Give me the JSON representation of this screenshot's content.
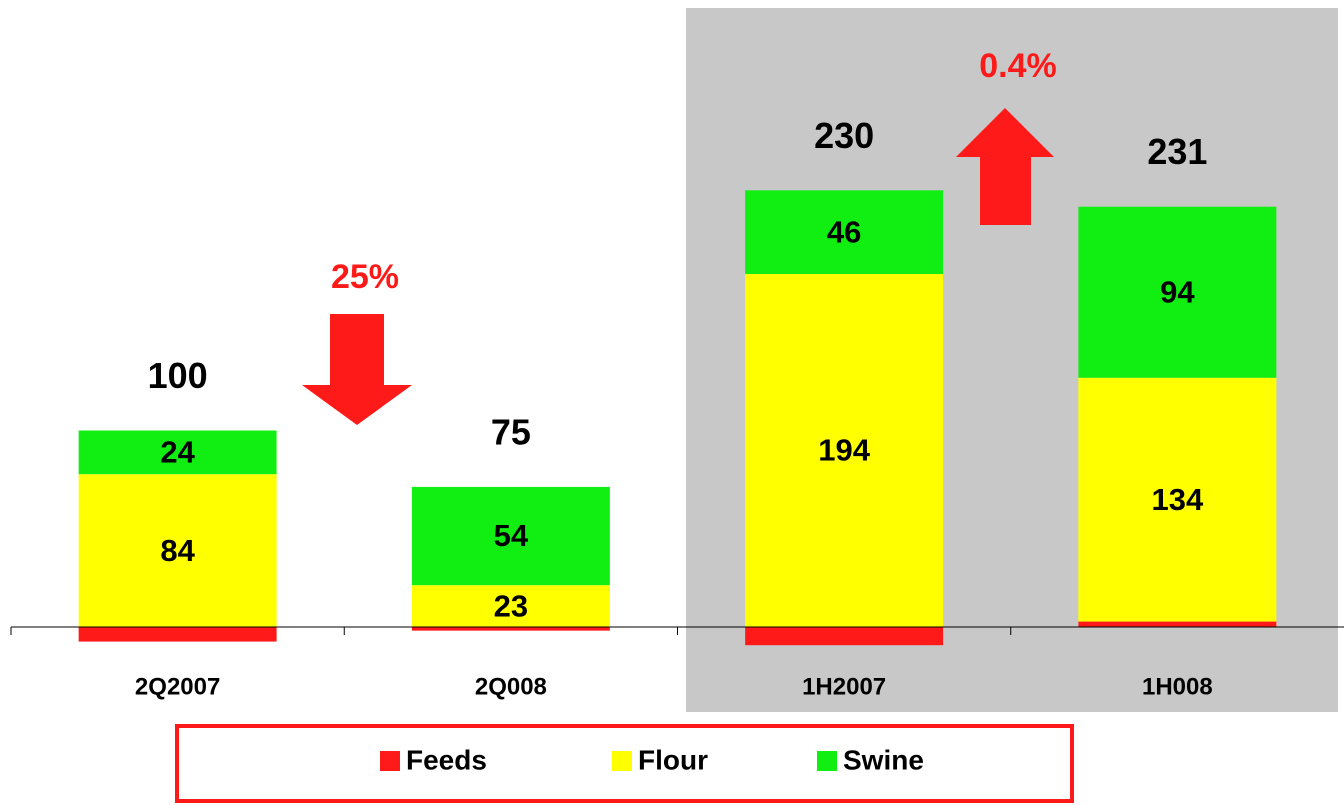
{
  "chart_data": {
    "type": "stacked_bar",
    "categories": [
      "2Q2007",
      "2Q008",
      "1H2007",
      "1H008"
    ],
    "series": [
      {
        "name": "Feeds",
        "color": "#ff1a1a",
        "values": [
          -8,
          -2,
          -10,
          3
        ]
      },
      {
        "name": "Flour",
        "color": "#ffff00",
        "values": [
          84,
          23,
          194,
          134
        ]
      },
      {
        "name": "Swine",
        "color": "#11ee11",
        "values": [
          24,
          54,
          46,
          94
        ]
      }
    ],
    "totals": [
      100,
      75,
      230,
      231
    ],
    "annotations": [
      {
        "text": "25%"
      },
      {
        "text": "0.4%"
      }
    ],
    "ylim": [
      -20,
      340
    ],
    "legend": "bottom"
  }
}
